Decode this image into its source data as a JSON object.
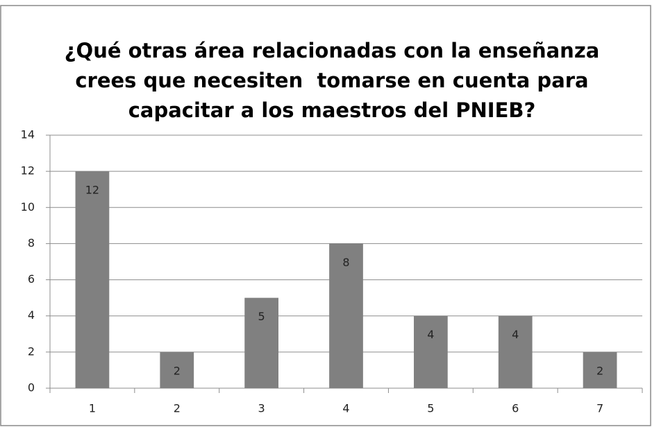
{
  "chart_data": {
    "type": "bar",
    "title": [
      "¿Qué otras área relacionadas con la enseñanza",
      "crees que necesiten  tomarse en cuenta para",
      "capacitar a los maestros del PNIEB?"
    ],
    "categories": [
      "1",
      "2",
      "3",
      "4",
      "5",
      "6",
      "7"
    ],
    "values": [
      12,
      2,
      5,
      8,
      4,
      4,
      2
    ],
    "color": "#808080",
    "ylim": [
      0,
      14
    ],
    "yticks": [
      0,
      2,
      4,
      6,
      8,
      10,
      12,
      14
    ],
    "grid": true
  }
}
